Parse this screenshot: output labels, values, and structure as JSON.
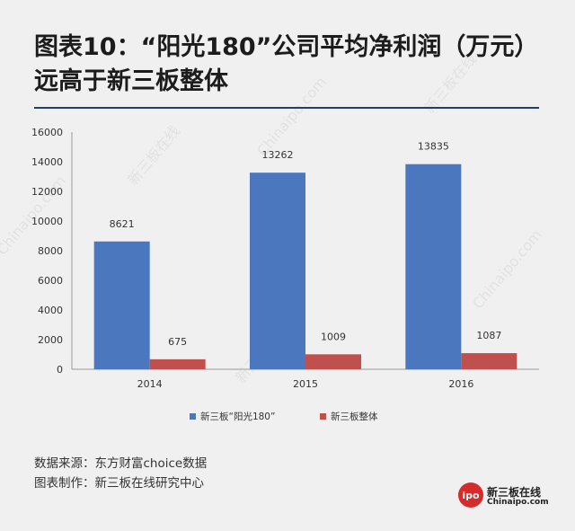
{
  "title": "图表10：“阳光180”公司平均净利润（万元）远高于新三板整体",
  "sources": {
    "line1": "数据来源：东方财富choice数据",
    "line2": "图表制作：新三板在线研究中心"
  },
  "logo": {
    "badge": "ipo",
    "name_cn": "新三板在线",
    "name_en": "Chinaipo.com"
  },
  "watermark": {
    "cn": "新三板在线",
    "en": "Chinaipo.com"
  },
  "colors": {
    "series1": "#4a77bd",
    "series2": "#c0504d",
    "title_rule": "#1f3f6e"
  },
  "chart_data": {
    "type": "bar",
    "categories": [
      "2014",
      "2015",
      "2016"
    ],
    "series": [
      {
        "name": "新三板“阳光180”",
        "values": [
          8621,
          13262,
          13835
        ]
      },
      {
        "name": "新三板整体",
        "values": [
          675,
          1009,
          1087
        ]
      }
    ],
    "ylim": [
      0,
      16000
    ],
    "yticks": [
      0,
      2000,
      4000,
      6000,
      8000,
      10000,
      12000,
      14000,
      16000
    ],
    "gridlines": false,
    "legend": "bottom",
    "data_labels": true
  }
}
